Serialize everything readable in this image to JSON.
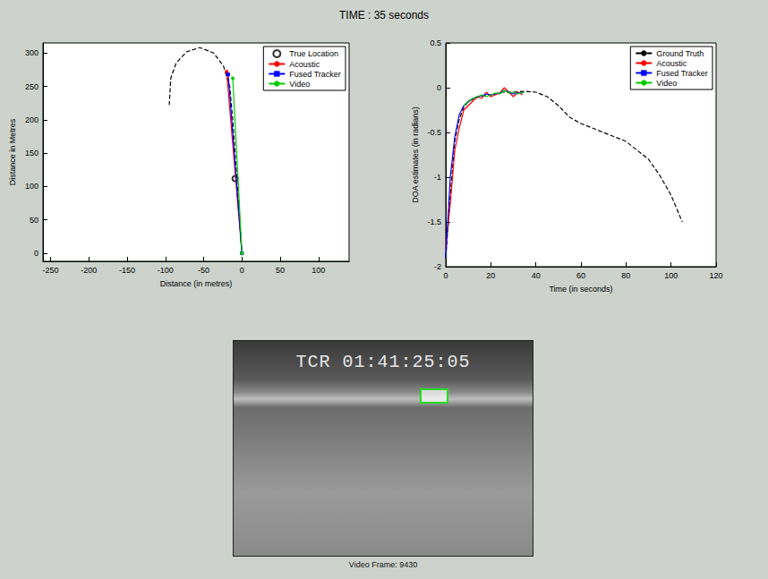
{
  "title": "TIME : 35 seconds",
  "chart_data": [
    {
      "type": "line",
      "xlabel": "Distance (in metres)",
      "ylabel": "Distance in Metres",
      "xlim": [
        -260,
        140
      ],
      "xticks": [
        -250,
        -200,
        -150,
        -100,
        -50,
        0,
        50,
        100
      ],
      "ylim": [
        -12,
        315
      ],
      "yticks": [
        0,
        50,
        100,
        150,
        200,
        250,
        300
      ],
      "grid": false,
      "legend": "upper right",
      "series": [
        {
          "type": "line",
          "color": "#000000",
          "line_style": "dashed",
          "marker": "none",
          "x": [
            0,
            -3,
            -6,
            -9,
            -12,
            -16,
            -24,
            -37,
            -55,
            -72,
            -86,
            -93,
            -95
          ],
          "values": [
            -3,
            50,
            100,
            150,
            200,
            250,
            280,
            300,
            308,
            302,
            285,
            262,
            222
          ]
        },
        {
          "name": "True Location",
          "type": "scatter",
          "color": "#000000",
          "marker": "open_circle",
          "x": [
            -9
          ],
          "values": [
            112
          ]
        },
        {
          "name": "Acoustic",
          "type": "line",
          "color": "#ff0000",
          "line_style": "solid",
          "marker": "circle",
          "x": [
            0,
            -20
          ],
          "values": [
            0,
            272
          ]
        },
        {
          "name": "Fused Tracker",
          "type": "line",
          "color": "#0000ff",
          "line_style": "solid",
          "marker": "square",
          "x": [
            0,
            -18
          ],
          "values": [
            0,
            268
          ]
        },
        {
          "name": "Video",
          "type": "line",
          "color": "#00cc00",
          "line_style": "solid",
          "marker": "circle",
          "x": [
            0,
            -12
          ],
          "values": [
            0,
            262
          ]
        }
      ]
    },
    {
      "type": "line",
      "xlabel": "Time (in seconds)",
      "ylabel": "DOA estimates (in radians)",
      "xlim": [
        0,
        120
      ],
      "xticks": [
        0,
        20,
        40,
        60,
        80,
        100,
        120
      ],
      "ylim": [
        -2,
        0.5
      ],
      "yticks": [
        -2,
        -1.5,
        -1,
        -0.5,
        0,
        0.5
      ],
      "grid": false,
      "legend": "upper right",
      "series": [
        {
          "name": "Ground Truth",
          "type": "line",
          "color": "#000000",
          "line_style": "dashed",
          "marker": "none",
          "x": [
            0,
            2,
            4,
            6,
            8,
            10,
            15,
            20,
            25,
            30,
            35,
            40,
            45,
            50,
            55,
            60,
            65,
            70,
            75,
            80,
            85,
            90,
            95,
            100,
            105
          ],
          "values": [
            -1.9,
            -1.2,
            -0.6,
            -0.35,
            -0.22,
            -0.15,
            -0.1,
            -0.08,
            -0.05,
            -0.05,
            -0.04,
            -0.05,
            -0.1,
            -0.2,
            -0.33,
            -0.4,
            -0.45,
            -0.5,
            -0.55,
            -0.6,
            -0.7,
            -0.8,
            -0.98,
            -1.2,
            -1.5
          ]
        },
        {
          "name": "Acoustic",
          "type": "line",
          "color": "#ff0000",
          "line_style": "solid",
          "marker": "none",
          "x": [
            0,
            2,
            4,
            6,
            8,
            10,
            12,
            14,
            16,
            18,
            20,
            22,
            24,
            26,
            28,
            30,
            32,
            34
          ],
          "values": [
            -1.8,
            -1.3,
            -0.7,
            -0.45,
            -0.25,
            -0.2,
            -0.15,
            -0.1,
            -0.12,
            -0.05,
            -0.1,
            -0.08,
            -0.06,
            0.0,
            -0.05,
            -0.1,
            -0.05,
            -0.08
          ]
        },
        {
          "name": "Fused Tracker",
          "type": "line",
          "color": "#0000ff",
          "line_style": "solid",
          "marker": "none",
          "x": [
            0,
            2,
            4,
            6,
            8,
            10,
            12,
            14,
            16,
            18,
            20,
            22,
            24,
            26,
            28,
            30,
            32,
            34
          ],
          "values": [
            -1.9,
            -1.0,
            -0.55,
            -0.3,
            -0.2,
            -0.16,
            -0.12,
            -0.1,
            -0.09,
            -0.07,
            -0.08,
            -0.07,
            -0.06,
            -0.03,
            -0.05,
            -0.07,
            -0.06,
            -0.06
          ]
        },
        {
          "name": "Video",
          "type": "line",
          "color": "#00cc00",
          "line_style": "solid",
          "marker": "none",
          "x": [
            8,
            10,
            12,
            14,
            16,
            18,
            20,
            22,
            24,
            26,
            28,
            30,
            32,
            35
          ],
          "values": [
            -0.2,
            -0.15,
            -0.12,
            -0.1,
            -0.08,
            -0.1,
            -0.08,
            -0.06,
            -0.07,
            -0.03,
            -0.06,
            -0.05,
            -0.07,
            -0.05
          ]
        }
      ]
    }
  ],
  "video": {
    "timecode": "TCR 01:41:25:05",
    "caption": "Video Frame: 9430"
  }
}
